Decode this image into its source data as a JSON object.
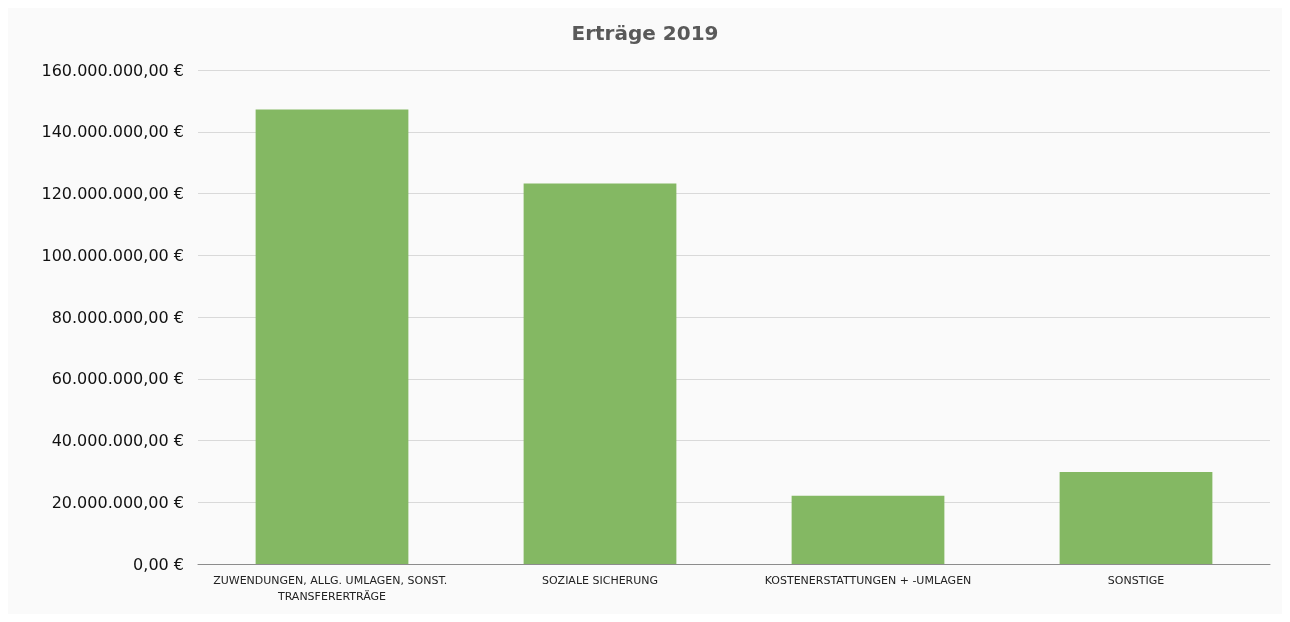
{
  "chart_data": {
    "type": "bar",
    "title": "Erträge 2019",
    "categories": [
      "ZUWENDUNGEN, ALLG. UMLAGEN, SONST. TRANSFERERTRÄGE",
      "SOZIALE SICHERUNG",
      "KOSTENERSTATTUNGEN + -UMLAGEN",
      "SONSTIGE"
    ],
    "values": [
      147200000,
      123200000,
      22100000,
      29800000
    ],
    "color": "#84b863",
    "ylim": [
      0,
      160000000
    ],
    "yticks": [
      {
        "value": 0,
        "label": "0,00 €"
      },
      {
        "value": 20000000,
        "label": "20.000.000,00 €"
      },
      {
        "value": 40000000,
        "label": "40.000.000,00 €"
      },
      {
        "value": 60000000,
        "label": "60.000.000,00 €"
      },
      {
        "value": 80000000,
        "label": "80.000.000,00 €"
      },
      {
        "value": 100000000,
        "label": "100.000.000,00 €"
      },
      {
        "value": 120000000,
        "label": "120.000.000,00 €"
      },
      {
        "value": 140000000,
        "label": "140.000.000,00 €"
      },
      {
        "value": 160000000,
        "label": "160.000.000,00 €"
      }
    ],
    "grid": "y"
  }
}
